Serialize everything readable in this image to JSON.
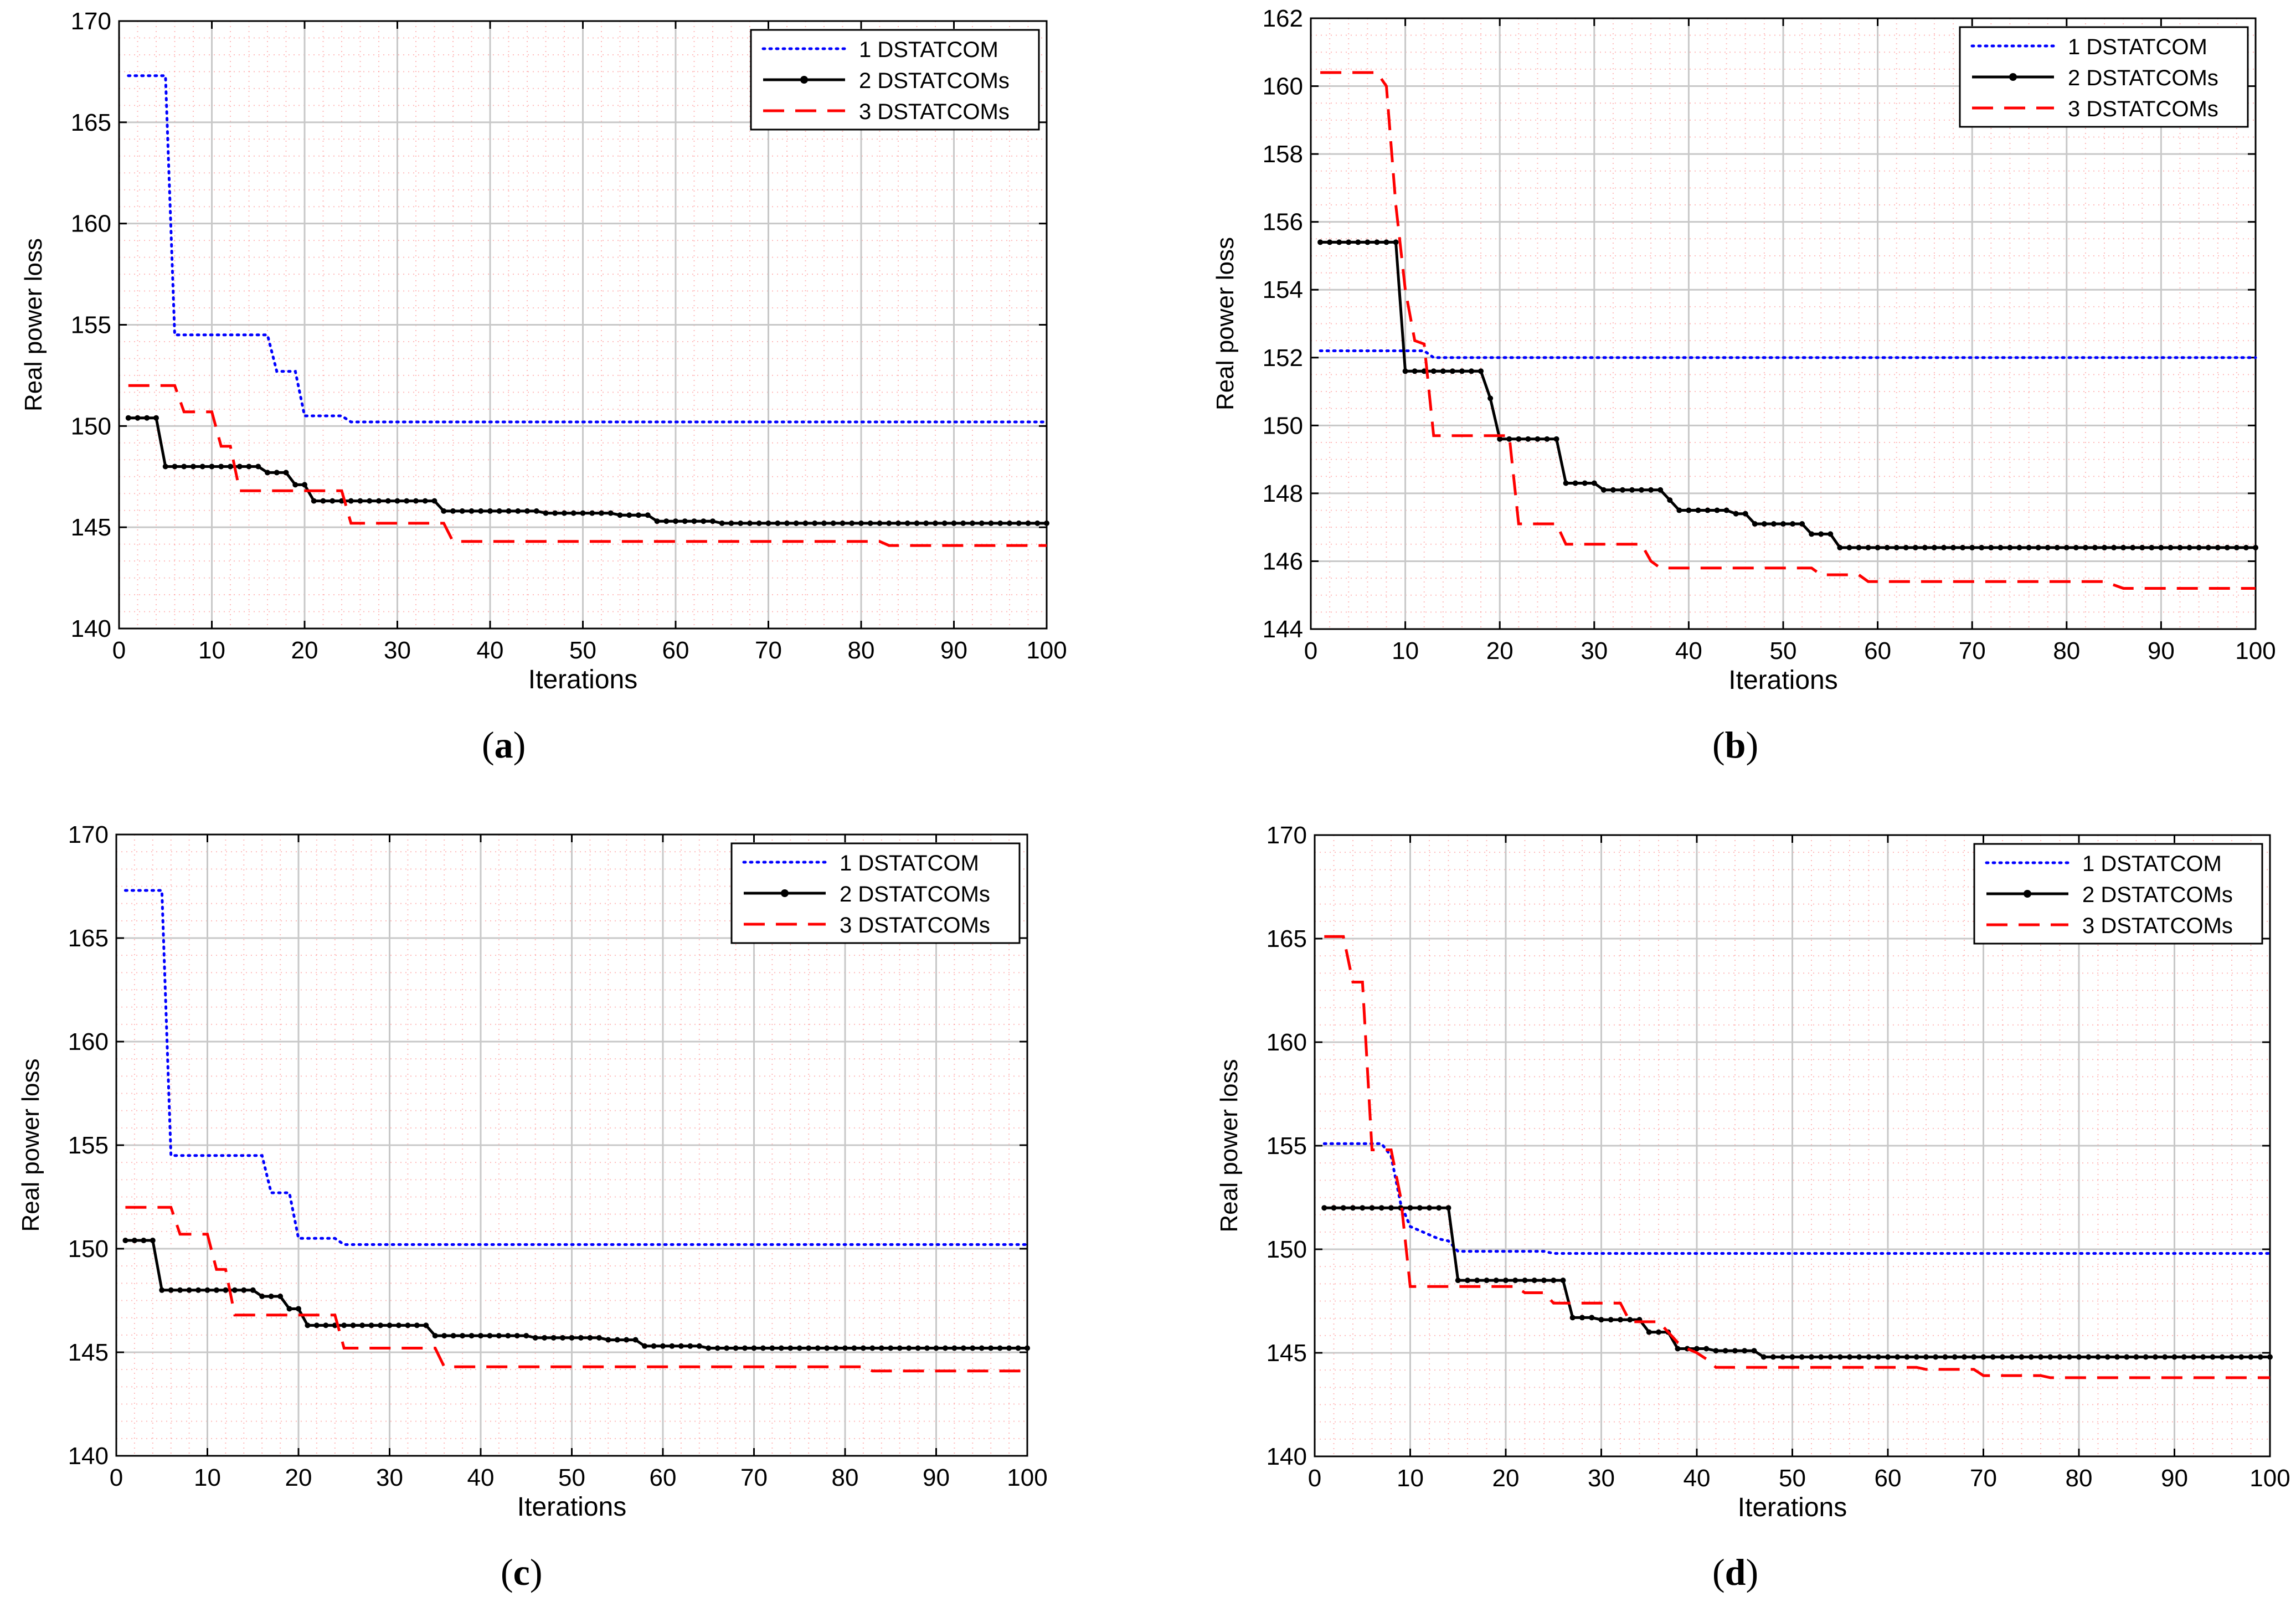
{
  "colors": {
    "series": [
      "#0000ff",
      "#000000",
      "#ff0000"
    ],
    "major_grid": "#c8c8c8",
    "minor_grid": "#ff8080",
    "axis": "#000000"
  },
  "chart_data": [
    {
      "panel": "(a)",
      "type": "line",
      "xlabel": "Iterations",
      "ylabel": "Real power loss",
      "xlim": [
        0,
        100
      ],
      "ylim": [
        140,
        170
      ],
      "xticks": [
        0,
        10,
        20,
        30,
        40,
        50,
        60,
        70,
        80,
        90,
        100
      ],
      "yticks": [
        140,
        145,
        150,
        155,
        160,
        165,
        170
      ],
      "legend": "top-right",
      "grid": true,
      "series": [
        {
          "name": "1 DSTATCOM",
          "style": "dotted",
          "x": [
            1,
            5,
            6,
            16,
            17,
            19,
            20,
            24,
            25,
            100
          ],
          "y": [
            167.3,
            167.3,
            154.5,
            154.5,
            152.7,
            152.7,
            150.5,
            150.5,
            150.2,
            150.2
          ]
        },
        {
          "name": "2 DSTATCOMs",
          "style": "solid-marker",
          "x": [
            1,
            4,
            5,
            12,
            13,
            15,
            16,
            18,
            19,
            20,
            21,
            34,
            35,
            45,
            46,
            53,
            54,
            57,
            58,
            64,
            65,
            100
          ],
          "y": [
            150.4,
            150.4,
            148.0,
            148.0,
            148.0,
            148.0,
            147.7,
            147.7,
            147.1,
            147.1,
            146.3,
            146.3,
            145.8,
            145.8,
            145.7,
            145.7,
            145.6,
            145.6,
            145.3,
            145.3,
            145.2,
            145.2
          ]
        },
        {
          "name": "3 DSTATCOMs",
          "style": "dashed",
          "x": [
            1,
            6,
            7,
            10,
            11,
            12,
            13,
            24,
            25,
            35,
            36,
            82,
            83,
            100
          ],
          "y": [
            152.0,
            152.0,
            150.7,
            150.7,
            149.0,
            149.0,
            146.8,
            146.8,
            145.2,
            145.2,
            144.3,
            144.3,
            144.1,
            144.1
          ]
        }
      ]
    },
    {
      "panel": "(b)",
      "type": "line",
      "xlabel": "Iterations",
      "ylabel": "Real power loss",
      "xlim": [
        0,
        100
      ],
      "ylim": [
        144,
        162
      ],
      "xticks": [
        0,
        10,
        20,
        30,
        40,
        50,
        60,
        70,
        80,
        90,
        100
      ],
      "yticks": [
        144,
        146,
        148,
        150,
        152,
        154,
        156,
        158,
        160,
        162
      ],
      "legend": "top-right",
      "grid": true,
      "series": [
        {
          "name": "1 DSTATCOM",
          "style": "dotted",
          "x": [
            1,
            12,
            13,
            100
          ],
          "y": [
            152.2,
            152.2,
            152.0,
            152.0
          ]
        },
        {
          "name": "2 DSTATCOMs",
          "style": "solid-marker",
          "x": [
            1,
            9,
            10,
            18,
            19,
            20,
            26,
            27,
            30,
            31,
            37,
            38,
            39,
            44,
            45,
            46,
            47,
            52,
            53,
            55,
            56,
            100
          ],
          "y": [
            155.4,
            155.4,
            151.6,
            151.6,
            150.8,
            149.6,
            149.6,
            148.3,
            148.3,
            148.1,
            148.1,
            147.8,
            147.5,
            147.5,
            147.4,
            147.4,
            147.1,
            147.1,
            146.8,
            146.8,
            146.4,
            146.4
          ]
        },
        {
          "name": "3 DSTATCOMs",
          "style": "dashed",
          "x": [
            1,
            7,
            8,
            9,
            10,
            11,
            12,
            13,
            21,
            22,
            26,
            27,
            35,
            36,
            37,
            53,
            54,
            58,
            59,
            84,
            86,
            100
          ],
          "y": [
            160.4,
            160.4,
            160.0,
            156.5,
            154.0,
            152.5,
            152.4,
            149.7,
            149.7,
            147.1,
            147.1,
            146.5,
            146.5,
            146.0,
            145.8,
            145.8,
            145.6,
            145.6,
            145.4,
            145.4,
            145.2,
            145.2
          ]
        }
      ]
    },
    {
      "panel": "(c)",
      "type": "line",
      "xlabel": "Iterations",
      "ylabel": "Real power loss",
      "xlim": [
        0,
        100
      ],
      "ylim": [
        140,
        170
      ],
      "xticks": [
        0,
        10,
        20,
        30,
        40,
        50,
        60,
        70,
        80,
        90,
        100
      ],
      "yticks": [
        140,
        145,
        150,
        155,
        160,
        165,
        170
      ],
      "legend": "top-right",
      "grid": true,
      "series": [
        {
          "name": "1 DSTATCOM",
          "style": "dotted",
          "x": [
            1,
            5,
            6,
            16,
            17,
            19,
            20,
            24,
            25,
            100
          ],
          "y": [
            167.3,
            167.3,
            154.5,
            154.5,
            152.7,
            152.7,
            150.5,
            150.5,
            150.2,
            150.2
          ]
        },
        {
          "name": "2 DSTATCOMs",
          "style": "solid-marker",
          "x": [
            1,
            4,
            5,
            12,
            13,
            15,
            16,
            18,
            19,
            20,
            21,
            34,
            35,
            45,
            46,
            53,
            54,
            57,
            58,
            64,
            65,
            100
          ],
          "y": [
            150.4,
            150.4,
            148.0,
            148.0,
            148.0,
            148.0,
            147.7,
            147.7,
            147.1,
            147.1,
            146.3,
            146.3,
            145.8,
            145.8,
            145.7,
            145.7,
            145.6,
            145.6,
            145.3,
            145.3,
            145.2,
            145.2
          ]
        },
        {
          "name": "3 DSTATCOMs",
          "style": "dashed",
          "x": [
            1,
            6,
            7,
            10,
            11,
            12,
            13,
            24,
            25,
            35,
            36,
            82,
            83,
            100
          ],
          "y": [
            152.0,
            152.0,
            150.7,
            150.7,
            149.0,
            149.0,
            146.8,
            146.8,
            145.2,
            145.2,
            144.3,
            144.3,
            144.1,
            144.1
          ]
        }
      ]
    },
    {
      "panel": "(d)",
      "type": "line",
      "xlabel": "Iterations",
      "ylabel": "Real power loss",
      "xlim": [
        0,
        100
      ],
      "ylim": [
        140,
        170
      ],
      "xticks": [
        0,
        10,
        20,
        30,
        40,
        50,
        60,
        70,
        80,
        90,
        100
      ],
      "yticks": [
        140,
        145,
        150,
        155,
        160,
        165,
        170
      ],
      "legend": "top-right",
      "grid": true,
      "series": [
        {
          "name": "1 DSTATCOM",
          "style": "dotted",
          "x": [
            1,
            7,
            8,
            9,
            10,
            12,
            13,
            14,
            15,
            24,
            25,
            100
          ],
          "y": [
            155.1,
            155.1,
            154.5,
            152.2,
            151.1,
            150.7,
            150.5,
            150.4,
            149.9,
            149.9,
            149.8,
            149.8
          ]
        },
        {
          "name": "2 DSTATCOMs",
          "style": "solid-marker",
          "x": [
            1,
            14,
            15,
            26,
            27,
            29,
            30,
            34,
            35,
            37,
            38,
            41,
            42,
            46,
            47,
            100
          ],
          "y": [
            152.0,
            152.0,
            148.5,
            148.5,
            146.7,
            146.7,
            146.6,
            146.6,
            146.0,
            146.0,
            145.2,
            145.2,
            145.1,
            145.1,
            144.8,
            144.8
          ]
        },
        {
          "name": "3 DSTATCOMs",
          "style": "dashed",
          "x": [
            1,
            3,
            4,
            5,
            6,
            8,
            9,
            10,
            21,
            22,
            24,
            25,
            32,
            33,
            36,
            37,
            38,
            39,
            40,
            41,
            42,
            63,
            64,
            69,
            70,
            76,
            77,
            100
          ],
          "y": [
            165.1,
            165.1,
            162.9,
            162.9,
            154.8,
            154.8,
            152.5,
            148.2,
            148.2,
            147.9,
            147.9,
            147.4,
            147.4,
            146.5,
            146.5,
            146.0,
            145.5,
            145.2,
            145.0,
            144.7,
            144.3,
            144.3,
            144.2,
            144.2,
            143.9,
            143.9,
            143.8,
            143.8
          ]
        }
      ]
    }
  ]
}
